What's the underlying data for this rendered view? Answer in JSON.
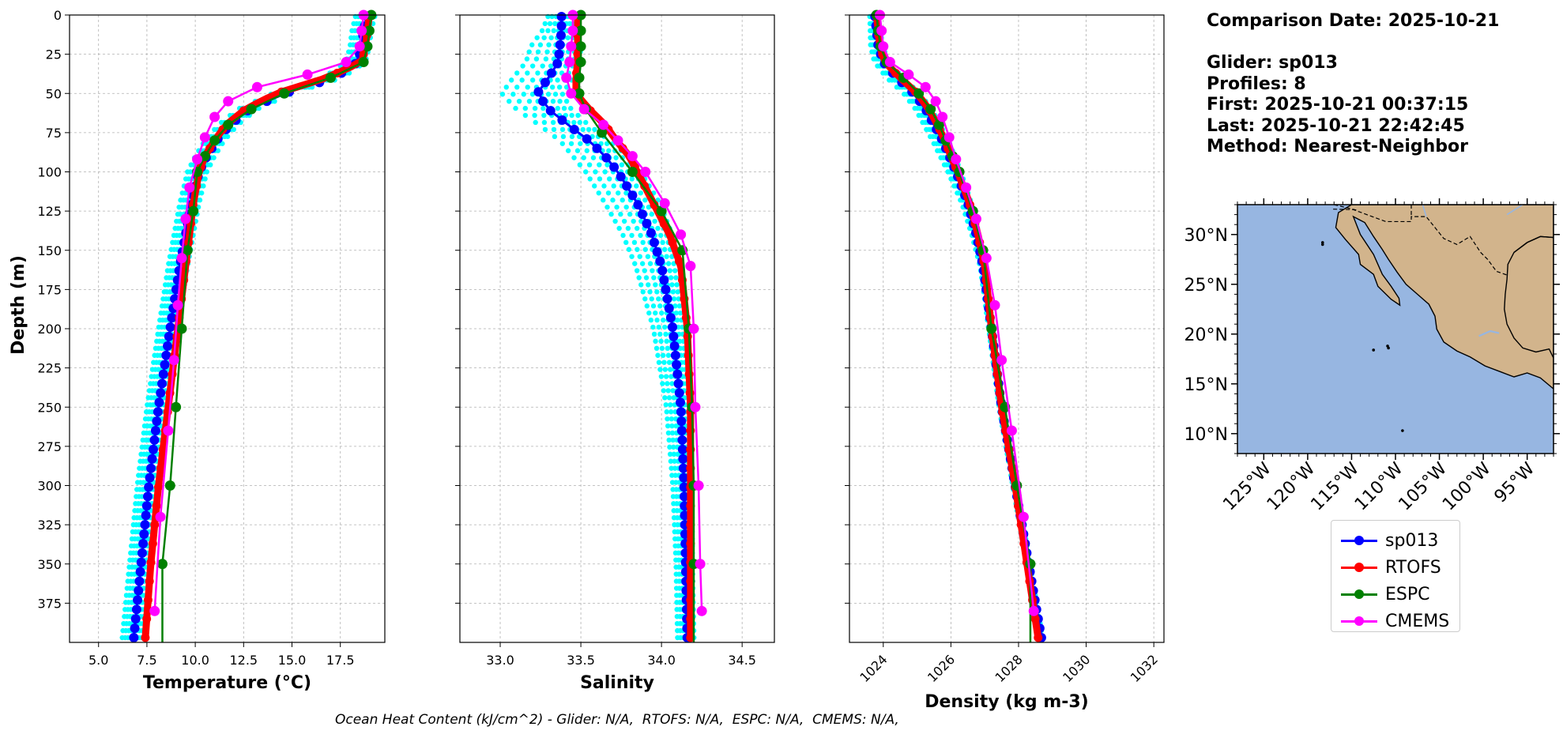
{
  "info": {
    "comparison_date": "Comparison Date: 2025-10-21",
    "glider": "Glider: sp013",
    "profiles": "Profiles: 8",
    "first": "First: 2025-10-21 00:37:15",
    "last": "Last: 2025-10-21 22:42:45",
    "method": "Method: Nearest-Neighbor"
  },
  "footer": "Ocean Heat Content (kJ/cm^2) - Glider: N/A,  RTOFS: N/A,  ESPC: N/A,  CMEMS: N/A,",
  "colors": {
    "sp013": "#0000ff",
    "rtofs": "#ff0000",
    "espc": "#008000",
    "cmems": "#ff00ff",
    "profiles": "#00ffff",
    "ocean": "#97b6e1",
    "land": "#d2b48c"
  },
  "legend": [
    {
      "name": "sp013",
      "color": "#0000ff"
    },
    {
      "name": "RTOFS",
      "color": "#ff0000"
    },
    {
      "name": "ESPC",
      "color": "#008000"
    },
    {
      "name": "CMEMS",
      "color": "#ff00ff"
    }
  ],
  "chart_data": [
    {
      "type": "line",
      "title": "",
      "xlabel": "Temperature (°C)",
      "ylabel": "Depth (m)",
      "xlim": [
        3.5,
        19.8
      ],
      "ylim": [
        400,
        0
      ],
      "xticks": [
        "5.0",
        "7.5",
        "10.0",
        "12.5",
        "15.0",
        "17.5"
      ],
      "yticks": [
        "0",
        "25",
        "50",
        "75",
        "100",
        "125",
        "150",
        "175",
        "200",
        "225",
        "250",
        "275",
        "300",
        "325",
        "350",
        "375"
      ],
      "grid": true,
      "individual_profiles": {
        "name": "sp013 profiles",
        "depth": [
          0,
          10,
          20,
          30,
          40,
          50,
          60,
          70,
          80,
          90,
          100,
          120,
          140,
          160,
          200,
          250,
          300,
          350,
          400
        ],
        "offsets": [
          -0.6,
          -0.45,
          -0.3,
          -0.15,
          0.0,
          0.1,
          0.25,
          0.4
        ]
      },
      "series": [
        {
          "name": "sp013",
          "depth": [
            0,
            10,
            20,
            30,
            40,
            50,
            60,
            70,
            80,
            90,
            100,
            120,
            140,
            160,
            200,
            250,
            300,
            350,
            400
          ],
          "values": [
            18.9,
            18.7,
            18.6,
            18.4,
            17.2,
            14.6,
            12.8,
            11.8,
            11.1,
            10.6,
            10.2,
            9.8,
            9.5,
            9.2,
            8.7,
            8.1,
            7.6,
            7.2,
            6.8
          ]
        },
        {
          "name": "RTOFS",
          "depth": [
            0,
            10,
            20,
            30,
            40,
            50,
            60,
            70,
            80,
            90,
            100,
            120,
            140,
            160,
            200,
            250,
            300,
            350,
            400
          ],
          "values": [
            19.0,
            18.9,
            18.8,
            18.6,
            16.8,
            14.2,
            12.6,
            11.6,
            11.0,
            10.5,
            10.2,
            9.9,
            9.7,
            9.5,
            9.1,
            8.6,
            8.1,
            7.7,
            7.4
          ]
        },
        {
          "name": "ESPC",
          "depth": [
            0,
            10,
            20,
            30,
            40,
            50,
            60,
            70,
            80,
            90,
            100,
            125,
            150,
            200,
            250,
            300,
            350
          ],
          "values": [
            19.1,
            19.0,
            18.9,
            18.7,
            17.0,
            14.6,
            12.9,
            11.7,
            11.0,
            10.5,
            10.1,
            9.9,
            9.6,
            9.3,
            9.0,
            8.7,
            8.3
          ]
        },
        {
          "name": "CMEMS",
          "depth": [
            0,
            10,
            20,
            30,
            38,
            46,
            55,
            65,
            78,
            92,
            110,
            130,
            155,
            185,
            220,
            265,
            320,
            380
          ],
          "values": [
            18.7,
            18.6,
            18.5,
            17.8,
            15.8,
            13.2,
            11.7,
            11.0,
            10.5,
            10.1,
            9.7,
            9.5,
            9.3,
            9.1,
            8.9,
            8.6,
            8.2,
            7.9
          ]
        }
      ]
    },
    {
      "type": "line",
      "xlabel": "Salinity",
      "ylabel": "",
      "xlim": [
        32.75,
        34.7
      ],
      "ylim": [
        400,
        0
      ],
      "xticks": [
        "33.0",
        "33.5",
        "34.0",
        "34.5"
      ],
      "grid": true,
      "individual_profiles": {
        "name": "sp013 profiles",
        "depth": [
          0,
          10,
          20,
          30,
          40,
          50,
          60,
          70,
          80,
          90,
          100,
          120,
          140,
          160,
          200,
          250,
          300,
          350,
          400
        ],
        "offsets": [
          -0.2,
          -0.14,
          -0.08,
          -0.03,
          0.02,
          0.06,
          0.1,
          0.14
        ],
        "offset_scale_depth": [
          0,
          10,
          20,
          30,
          40,
          50,
          60,
          70,
          80,
          90,
          100,
          120,
          140,
          160,
          200,
          250,
          300,
          350,
          400
        ],
        "offset_scale": [
          0.4,
          0.6,
          0.9,
          1.0,
          1.1,
          1.1,
          1.0,
          0.9,
          0.9,
          1.0,
          1.0,
          1.0,
          0.9,
          0.8,
          0.6,
          0.45,
          0.35,
          0.3,
          0.3
        ]
      },
      "series": [
        {
          "name": "sp013",
          "depth": [
            0,
            10,
            20,
            30,
            40,
            50,
            60,
            70,
            80,
            90,
            100,
            120,
            140,
            160,
            200,
            250,
            300,
            350,
            400
          ],
          "values": [
            33.38,
            33.38,
            33.37,
            33.36,
            33.3,
            33.23,
            33.3,
            33.42,
            33.55,
            33.65,
            33.73,
            33.85,
            33.94,
            34.0,
            34.07,
            34.12,
            34.14,
            34.15,
            34.16
          ]
        },
        {
          "name": "RTOFS",
          "depth": [
            0,
            10,
            20,
            30,
            40,
            50,
            60,
            70,
            80,
            90,
            100,
            120,
            140,
            160,
            200,
            250,
            300,
            350,
            400
          ],
          "values": [
            33.48,
            33.48,
            33.48,
            33.48,
            33.47,
            33.47,
            33.55,
            33.65,
            33.72,
            33.8,
            33.85,
            33.95,
            34.05,
            34.12,
            34.16,
            34.18,
            34.18,
            34.18,
            34.18
          ]
        },
        {
          "name": "ESPC",
          "depth": [
            0,
            10,
            20,
            30,
            40,
            50,
            60,
            75,
            100,
            125,
            150,
            200,
            250,
            300,
            350
          ],
          "values": [
            33.5,
            33.5,
            33.5,
            33.5,
            33.49,
            33.49,
            33.53,
            33.63,
            33.82,
            34.0,
            34.13,
            34.17,
            34.19,
            34.2,
            34.2
          ]
        },
        {
          "name": "CMEMS",
          "depth": [
            0,
            10,
            20,
            30,
            40,
            50,
            60,
            70,
            80,
            90,
            100,
            120,
            140,
            160,
            200,
            250,
            300,
            350,
            380
          ],
          "values": [
            33.45,
            33.45,
            33.44,
            33.43,
            33.41,
            33.44,
            33.52,
            33.64,
            33.73,
            33.82,
            33.9,
            34.02,
            34.12,
            34.18,
            34.2,
            34.21,
            34.23,
            34.24,
            34.25
          ]
        }
      ]
    },
    {
      "type": "line",
      "xlabel": "Density (kg m-3)",
      "ylabel": "",
      "xlim": [
        1023.0,
        1032.3
      ],
      "ylim": [
        400,
        0
      ],
      "xticks": [
        "1024",
        "1026",
        "1028",
        "1030",
        "1032"
      ],
      "grid": true,
      "individual_profiles": {
        "name": "sp013 profiles",
        "depth": [
          0,
          10,
          20,
          30,
          40,
          50,
          60,
          70,
          80,
          90,
          100,
          120,
          140,
          160,
          200,
          250,
          300,
          350,
          400
        ],
        "offsets": [
          -0.3,
          -0.22,
          -0.14,
          -0.07,
          0.0,
          0.06,
          0.12,
          0.18
        ],
        "offset_scale_depth": [
          0,
          40,
          80,
          120,
          160,
          400
        ],
        "offset_scale": [
          0.5,
          1.0,
          1.0,
          0.6,
          0.3,
          0.2
        ]
      },
      "series": [
        {
          "name": "sp013",
          "depth": [
            0,
            10,
            20,
            30,
            40,
            50,
            60,
            70,
            80,
            90,
            100,
            120,
            140,
            160,
            200,
            250,
            300,
            350,
            400
          ],
          "values": [
            1023.75,
            1023.8,
            1023.85,
            1024.0,
            1024.4,
            1024.9,
            1025.25,
            1025.5,
            1025.75,
            1025.95,
            1026.15,
            1026.5,
            1026.75,
            1026.95,
            1027.2,
            1027.5,
            1027.9,
            1028.3,
            1028.7
          ]
        },
        {
          "name": "RTOFS",
          "depth": [
            0,
            10,
            20,
            30,
            40,
            50,
            60,
            70,
            80,
            90,
            100,
            120,
            140,
            160,
            200,
            250,
            300,
            350,
            400
          ],
          "values": [
            1023.8,
            1023.85,
            1023.9,
            1024.05,
            1024.5,
            1025.0,
            1025.35,
            1025.6,
            1025.82,
            1026.0,
            1026.2,
            1026.55,
            1026.8,
            1027.0,
            1027.2,
            1027.5,
            1027.9,
            1028.25,
            1028.6
          ]
        },
        {
          "name": "ESPC",
          "depth": [
            0,
            10,
            20,
            30,
            40,
            50,
            60,
            70,
            80,
            90,
            100,
            125,
            150,
            200,
            250,
            300,
            350
          ],
          "values": [
            1023.8,
            1023.85,
            1023.92,
            1024.1,
            1024.6,
            1025.05,
            1025.4,
            1025.65,
            1025.85,
            1026.05,
            1026.25,
            1026.65,
            1026.95,
            1027.2,
            1027.6,
            1027.95,
            1028.35
          ]
        },
        {
          "name": "CMEMS",
          "depth": [
            0,
            10,
            20,
            30,
            38,
            46,
            55,
            65,
            78,
            92,
            110,
            130,
            155,
            185,
            220,
            265,
            320,
            380
          ],
          "values": [
            1023.9,
            1023.95,
            1024.0,
            1024.2,
            1024.75,
            1025.25,
            1025.55,
            1025.75,
            1025.95,
            1026.15,
            1026.45,
            1026.75,
            1027.05,
            1027.3,
            1027.5,
            1027.8,
            1028.15,
            1028.45
          ]
        }
      ]
    },
    {
      "type": "map",
      "title": "",
      "lon_range": [
        -128,
        -92
      ],
      "lat_range": [
        8,
        33
      ],
      "xticks": [
        "125°W",
        "120°W",
        "115°W",
        "110°W",
        "105°W",
        "100°W",
        "95°W"
      ],
      "yticks": [
        "30°N",
        "25°N",
        "20°N",
        "15°N",
        "10°N"
      ],
      "land": [
        [
          [
            -115,
            33
          ],
          [
            -116.5,
            32.2
          ],
          [
            -116.8,
            30.7
          ],
          [
            -115.7,
            29.5
          ],
          [
            -114.2,
            28.0
          ],
          [
            -114.0,
            27.0
          ],
          [
            -112.5,
            26.0
          ],
          [
            -112.0,
            24.8
          ],
          [
            -110.5,
            23.5
          ],
          [
            -109.5,
            22.9
          ],
          [
            -109.6,
            23.6
          ],
          [
            -110.5,
            24.8
          ],
          [
            -111.5,
            26.0
          ],
          [
            -112.5,
            28.0
          ],
          [
            -114.0,
            30.0
          ],
          [
            -114.8,
            31.8
          ],
          [
            -113.5,
            31.2
          ],
          [
            -112.5,
            29.8
          ],
          [
            -111.5,
            28.5
          ],
          [
            -110.8,
            27.5
          ],
          [
            -109.8,
            26.2
          ],
          [
            -108.8,
            25.0
          ],
          [
            -107.5,
            24.0
          ],
          [
            -106.2,
            23.0
          ],
          [
            -105.5,
            21.8
          ],
          [
            -105.3,
            20.5
          ],
          [
            -104.5,
            19.2
          ],
          [
            -103.0,
            18.3
          ],
          [
            -101.5,
            17.7
          ],
          [
            -99.8,
            16.8
          ],
          [
            -98.0,
            16.2
          ],
          [
            -96.5,
            15.7
          ],
          [
            -95.0,
            16.1
          ],
          [
            -93.5,
            15.6
          ],
          [
            -92.0,
            14.5
          ],
          [
            -92,
            33
          ]
        ],
        [
          [
            -92,
            17.6
          ],
          [
            -92.5,
            18.5
          ],
          [
            -94.0,
            18.2
          ],
          [
            -95.5,
            18.6
          ],
          [
            -96.5,
            19.6
          ],
          [
            -97.3,
            21.0
          ],
          [
            -97.6,
            22.5
          ],
          [
            -97.5,
            24.0
          ],
          [
            -97.3,
            25.5
          ],
          [
            -97.2,
            27.0
          ],
          [
            -96.5,
            28.2
          ],
          [
            -95.0,
            29.2
          ],
          [
            -93.5,
            29.8
          ],
          [
            -92,
            29.7
          ],
          [
            -92,
            17.6
          ]
        ]
      ],
      "borders": [
        [
          [
            -117.1,
            32.55
          ],
          [
            -114.8,
            32.5
          ],
          [
            -111.1,
            31.3
          ],
          [
            -108.2,
            31.3
          ],
          [
            -108.2,
            31.8
          ],
          [
            -106.5,
            31.8
          ],
          [
            -104.5,
            29.6
          ],
          [
            -103.0,
            29.0
          ],
          [
            -101.5,
            29.8
          ],
          [
            -100.3,
            28.2
          ],
          [
            -99.5,
            27.5
          ],
          [
            -98.5,
            26.3
          ],
          [
            -97.2,
            25.9
          ]
        ],
        [
          [
            -117.0,
            33.0
          ],
          [
            -114.2,
            32.4
          ]
        ],
        [
          [
            -108.2,
            33.0
          ],
          [
            -108.2,
            31.8
          ]
        ]
      ],
      "coast_extra": [
        [
          [
            -92,
            29.7
          ],
          [
            -93.5,
            29.8
          ],
          [
            -95.0,
            29.2
          ],
          [
            -96.5,
            28.2
          ]
        ]
      ],
      "lakes": [
        [
          [
            -100.5,
            19.8
          ],
          [
            -99.2,
            20.3
          ],
          [
            -98.2,
            20.1
          ]
        ],
        [
          [
            -107.8,
            20.2
          ],
          [
            -106.8,
            21.0
          ],
          [
            -106.2,
            20.5
          ]
        ]
      ],
      "rivers": [
        [
          [
            -106.5,
            31.8
          ],
          [
            -106.9,
            33.0
          ]
        ],
        [
          [
            -97.3,
            32.0
          ],
          [
            -95.5,
            33.0
          ]
        ]
      ],
      "islands": [
        [
          -118.3,
          29.0
        ],
        [
          -110.9,
          18.8
        ],
        [
          -112.5,
          18.4
        ],
        [
          -109.2,
          10.3
        ],
        [
          -118.3,
          29.2
        ],
        [
          -110.8,
          18.6
        ]
      ]
    }
  ]
}
